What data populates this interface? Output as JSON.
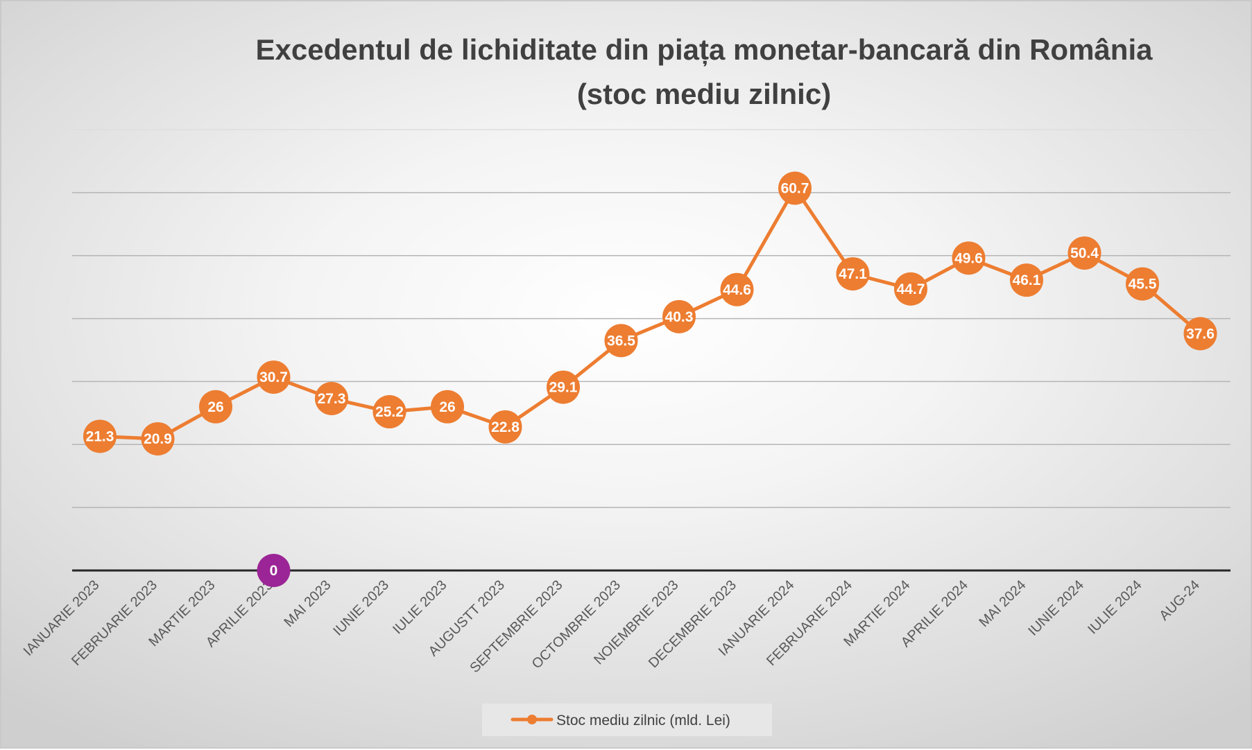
{
  "chart_data": {
    "type": "line",
    "title": "Excedentul de lichiditate din piața monetar-bancară din România",
    "subtitle": "(stoc mediu zilnic)",
    "categories": [
      "IANUARIE 2023",
      "FEBRUARIE 2023",
      "MARTIE 2023",
      "APRILIE 2023",
      "MAI 2023",
      "IUNIE 2023",
      "IULIE 2023",
      "AUGUSTT 2023",
      "SEPTEMBRIE 2023",
      "OCTOMBRIE 2023",
      "NOIEMBRIE 2023",
      "DECEMBRIE 2023",
      "IANUARIE 2024",
      "FEBRUARIE 2024",
      "MARTIE 2024",
      "APRILIE 2024",
      "MAI 2024",
      "IUNIE 2024",
      "IULIE 2024",
      "AUG-24"
    ],
    "series": [
      {
        "name": "Stoc mediu zilnic (mld. Lei)",
        "color": "#ed7d31",
        "values": [
          21.3,
          20.9,
          26,
          30.7,
          27.3,
          25.2,
          26,
          22.8,
          29.1,
          36.5,
          40.3,
          44.6,
          60.7,
          47.1,
          44.7,
          49.6,
          46.1,
          50.4,
          45.5,
          37.6
        ]
      }
    ],
    "zero_marker": {
      "category": "APRILIE 2023",
      "value": 0,
      "label": "0",
      "color": "#9b2596"
    },
    "ylim": [
      0,
      70
    ],
    "y_gridlines": [
      10,
      20,
      30,
      40,
      50,
      60,
      70
    ],
    "y_tick_labels_visible": false,
    "grid": true,
    "legend": "bottom",
    "xlabel": "",
    "ylabel": ""
  }
}
